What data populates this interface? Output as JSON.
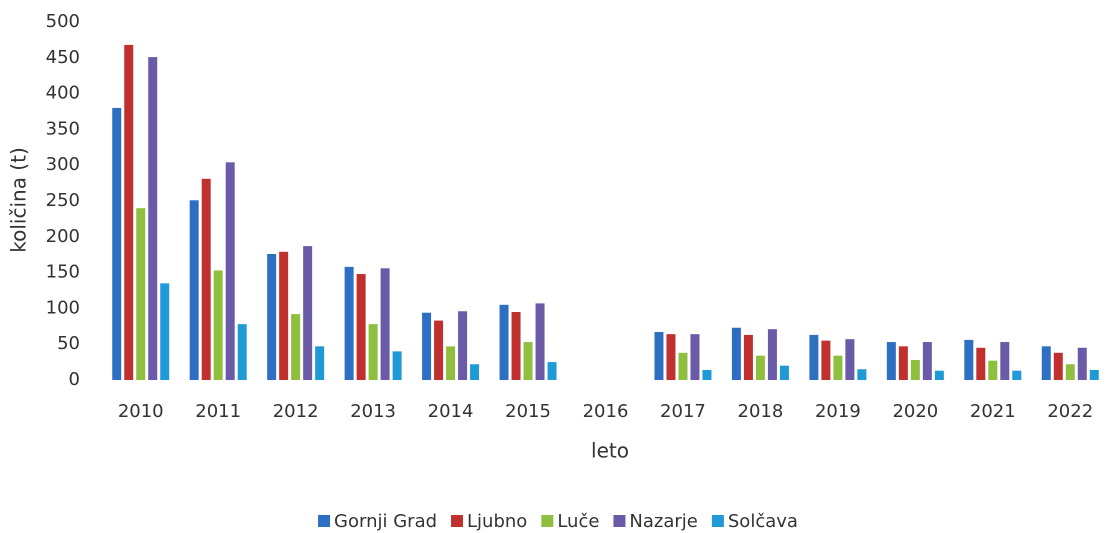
{
  "chart_data": {
    "type": "bar",
    "categories": [
      "2010",
      "2011",
      "2012",
      "2013",
      "2014",
      "2015",
      "2016",
      "2017",
      "2018",
      "2019",
      "2020",
      "2021",
      "2022"
    ],
    "series": [
      {
        "name": "Gornji Grad",
        "color": "#2e6fc4",
        "values": [
          380,
          251,
          176,
          158,
          94,
          105,
          null,
          67,
          73,
          63,
          53,
          56,
          47
        ]
      },
      {
        "name": "Ljubno",
        "color": "#c0302e",
        "values": [
          468,
          281,
          179,
          148,
          83,
          95,
          null,
          64,
          63,
          55,
          47,
          45,
          38
        ]
      },
      {
        "name": "Luče",
        "color": "#8fbf3f",
        "values": [
          240,
          153,
          92,
          78,
          47,
          53,
          null,
          38,
          34,
          34,
          28,
          27,
          22
        ]
      },
      {
        "name": "Nazarje",
        "color": "#6a5aa8",
        "values": [
          451,
          304,
          187,
          156,
          96,
          107,
          null,
          64,
          71,
          57,
          53,
          53,
          45
        ]
      },
      {
        "name": "Solčava",
        "color": "#1f9ad6",
        "values": [
          135,
          78,
          47,
          40,
          22,
          25,
          null,
          14,
          20,
          15,
          13,
          13,
          14
        ]
      }
    ],
    "xlabel": "leto",
    "ylabel": "količina (t)",
    "ylim": [
      0,
      500
    ],
    "yticks": [
      0,
      50,
      100,
      150,
      200,
      250,
      300,
      350,
      400,
      450,
      500
    ],
    "grid": false,
    "legend": "bottom"
  }
}
